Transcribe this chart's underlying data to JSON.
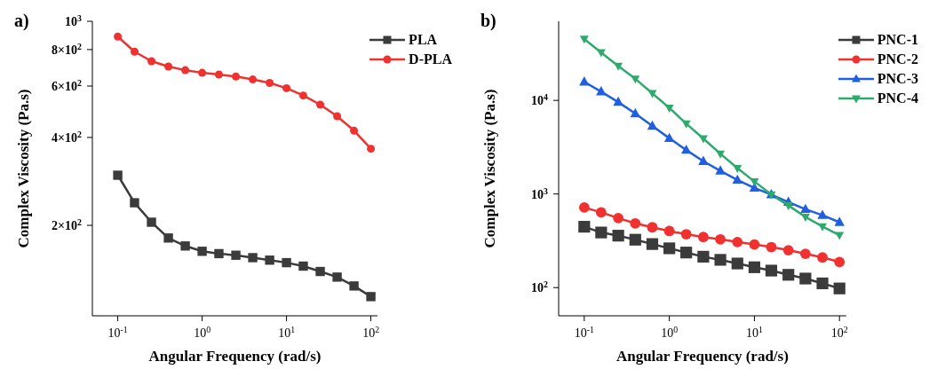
{
  "chart_data": [
    {
      "type": "line",
      "title": "a)",
      "xlabel": "Angular Frequency (rad/s)",
      "ylabel": "Complex Viscosity (Pa.s)",
      "log": "xy",
      "grid": false,
      "legend": "top right",
      "x": [
        0.1,
        0.158,
        0.251,
        0.398,
        0.631,
        1,
        1.58,
        2.51,
        3.98,
        6.31,
        10,
        15.8,
        25.1,
        39.8,
        63.1,
        100
      ],
      "xlim": [
        0.05,
        120
      ],
      "xticks": [
        {
          "value": 0.1,
          "label": "10$^{-1}$"
        },
        {
          "value": 1,
          "label": "10$^{0}$"
        },
        {
          "value": 10,
          "label": "10$^{1}$"
        },
        {
          "value": 100,
          "label": "10$^{2}$"
        }
      ],
      "ylim": [
        98,
        1000
      ],
      "yticks": [
        {
          "value": 200,
          "label": "2×10$^{2}$"
        },
        {
          "value": 400,
          "label": "4×10$^{2}$"
        },
        {
          "value": 600,
          "label": "6×10$^{2}$"
        },
        {
          "value": 800,
          "label": "8×10$^{2}$"
        },
        {
          "value": 1000,
          "label": "10$^{3}$"
        }
      ],
      "series": [
        {
          "name": "PLA",
          "color": "#3b3b3b",
          "marker": "square",
          "values": [
            297,
            239,
            205,
            181,
            170,
            163,
            160,
            158,
            155,
            152,
            149,
            145,
            139,
            133,
            124,
            114
          ]
        },
        {
          "name": "D-PLA",
          "color": "#f0312f",
          "marker": "circle",
          "values": [
            886,
            787,
            730,
            700,
            680,
            666,
            657,
            647,
            632,
            615,
            590,
            557,
            518,
            473,
            422,
            366
          ]
        }
      ]
    },
    {
      "type": "line",
      "title": "b)",
      "xlabel": "Angular Frequency (rad/s)",
      "ylabel": "Complex Viscosity (Pa.s)",
      "log": "xy",
      "grid": false,
      "legend": "top right",
      "x": [
        0.1,
        0.158,
        0.251,
        0.398,
        0.631,
        1,
        1.58,
        2.51,
        3.98,
        6.31,
        10,
        15.8,
        25.1,
        39.8,
        63.1,
        100
      ],
      "xlim": [
        0.05,
        120
      ],
      "xticks": [
        {
          "value": 0.1,
          "label": "10$^{-1}$"
        },
        {
          "value": 1,
          "label": "10$^{0}$"
        },
        {
          "value": 10,
          "label": "10$^{1}$"
        },
        {
          "value": 100,
          "label": "10$^{2}$"
        }
      ],
      "ylim": [
        50,
        70000
      ],
      "yticks": [
        {
          "value": 100,
          "label": "10$^{2}$"
        },
        {
          "value": 1000,
          "label": "10$^{3}$"
        },
        {
          "value": 10000,
          "label": "10$^{4}$"
        }
      ],
      "series": [
        {
          "name": "PNC-1",
          "color": "#3b3b3b",
          "marker": "square",
          "values": [
            447,
            388,
            359,
            325,
            292,
            263,
            237,
            214,
            198,
            181,
            165,
            152,
            137,
            125,
            111,
            98
          ]
        },
        {
          "name": "PNC-2",
          "color": "#f0312f",
          "marker": "circle",
          "values": [
            718,
            637,
            553,
            486,
            441,
            402,
            372,
            347,
            328,
            307,
            289,
            271,
            251,
            230,
            210,
            188
          ]
        },
        {
          "name": "PNC-3",
          "color": "#1f5fe0",
          "marker": "triangle",
          "values": [
            15800,
            12400,
            9590,
            7230,
            5330,
            3940,
            2950,
            2240,
            1770,
            1410,
            1160,
            986,
            820,
            687,
            593,
            500
          ]
        },
        {
          "name": "PNC-4",
          "color": "#2eaa6c",
          "marker": "triangle-down",
          "values": [
            45300,
            32500,
            23300,
            17000,
            11900,
            8320,
            5650,
            3910,
            2690,
            1890,
            1360,
            986,
            754,
            569,
            450,
            364
          ]
        }
      ]
    }
  ]
}
